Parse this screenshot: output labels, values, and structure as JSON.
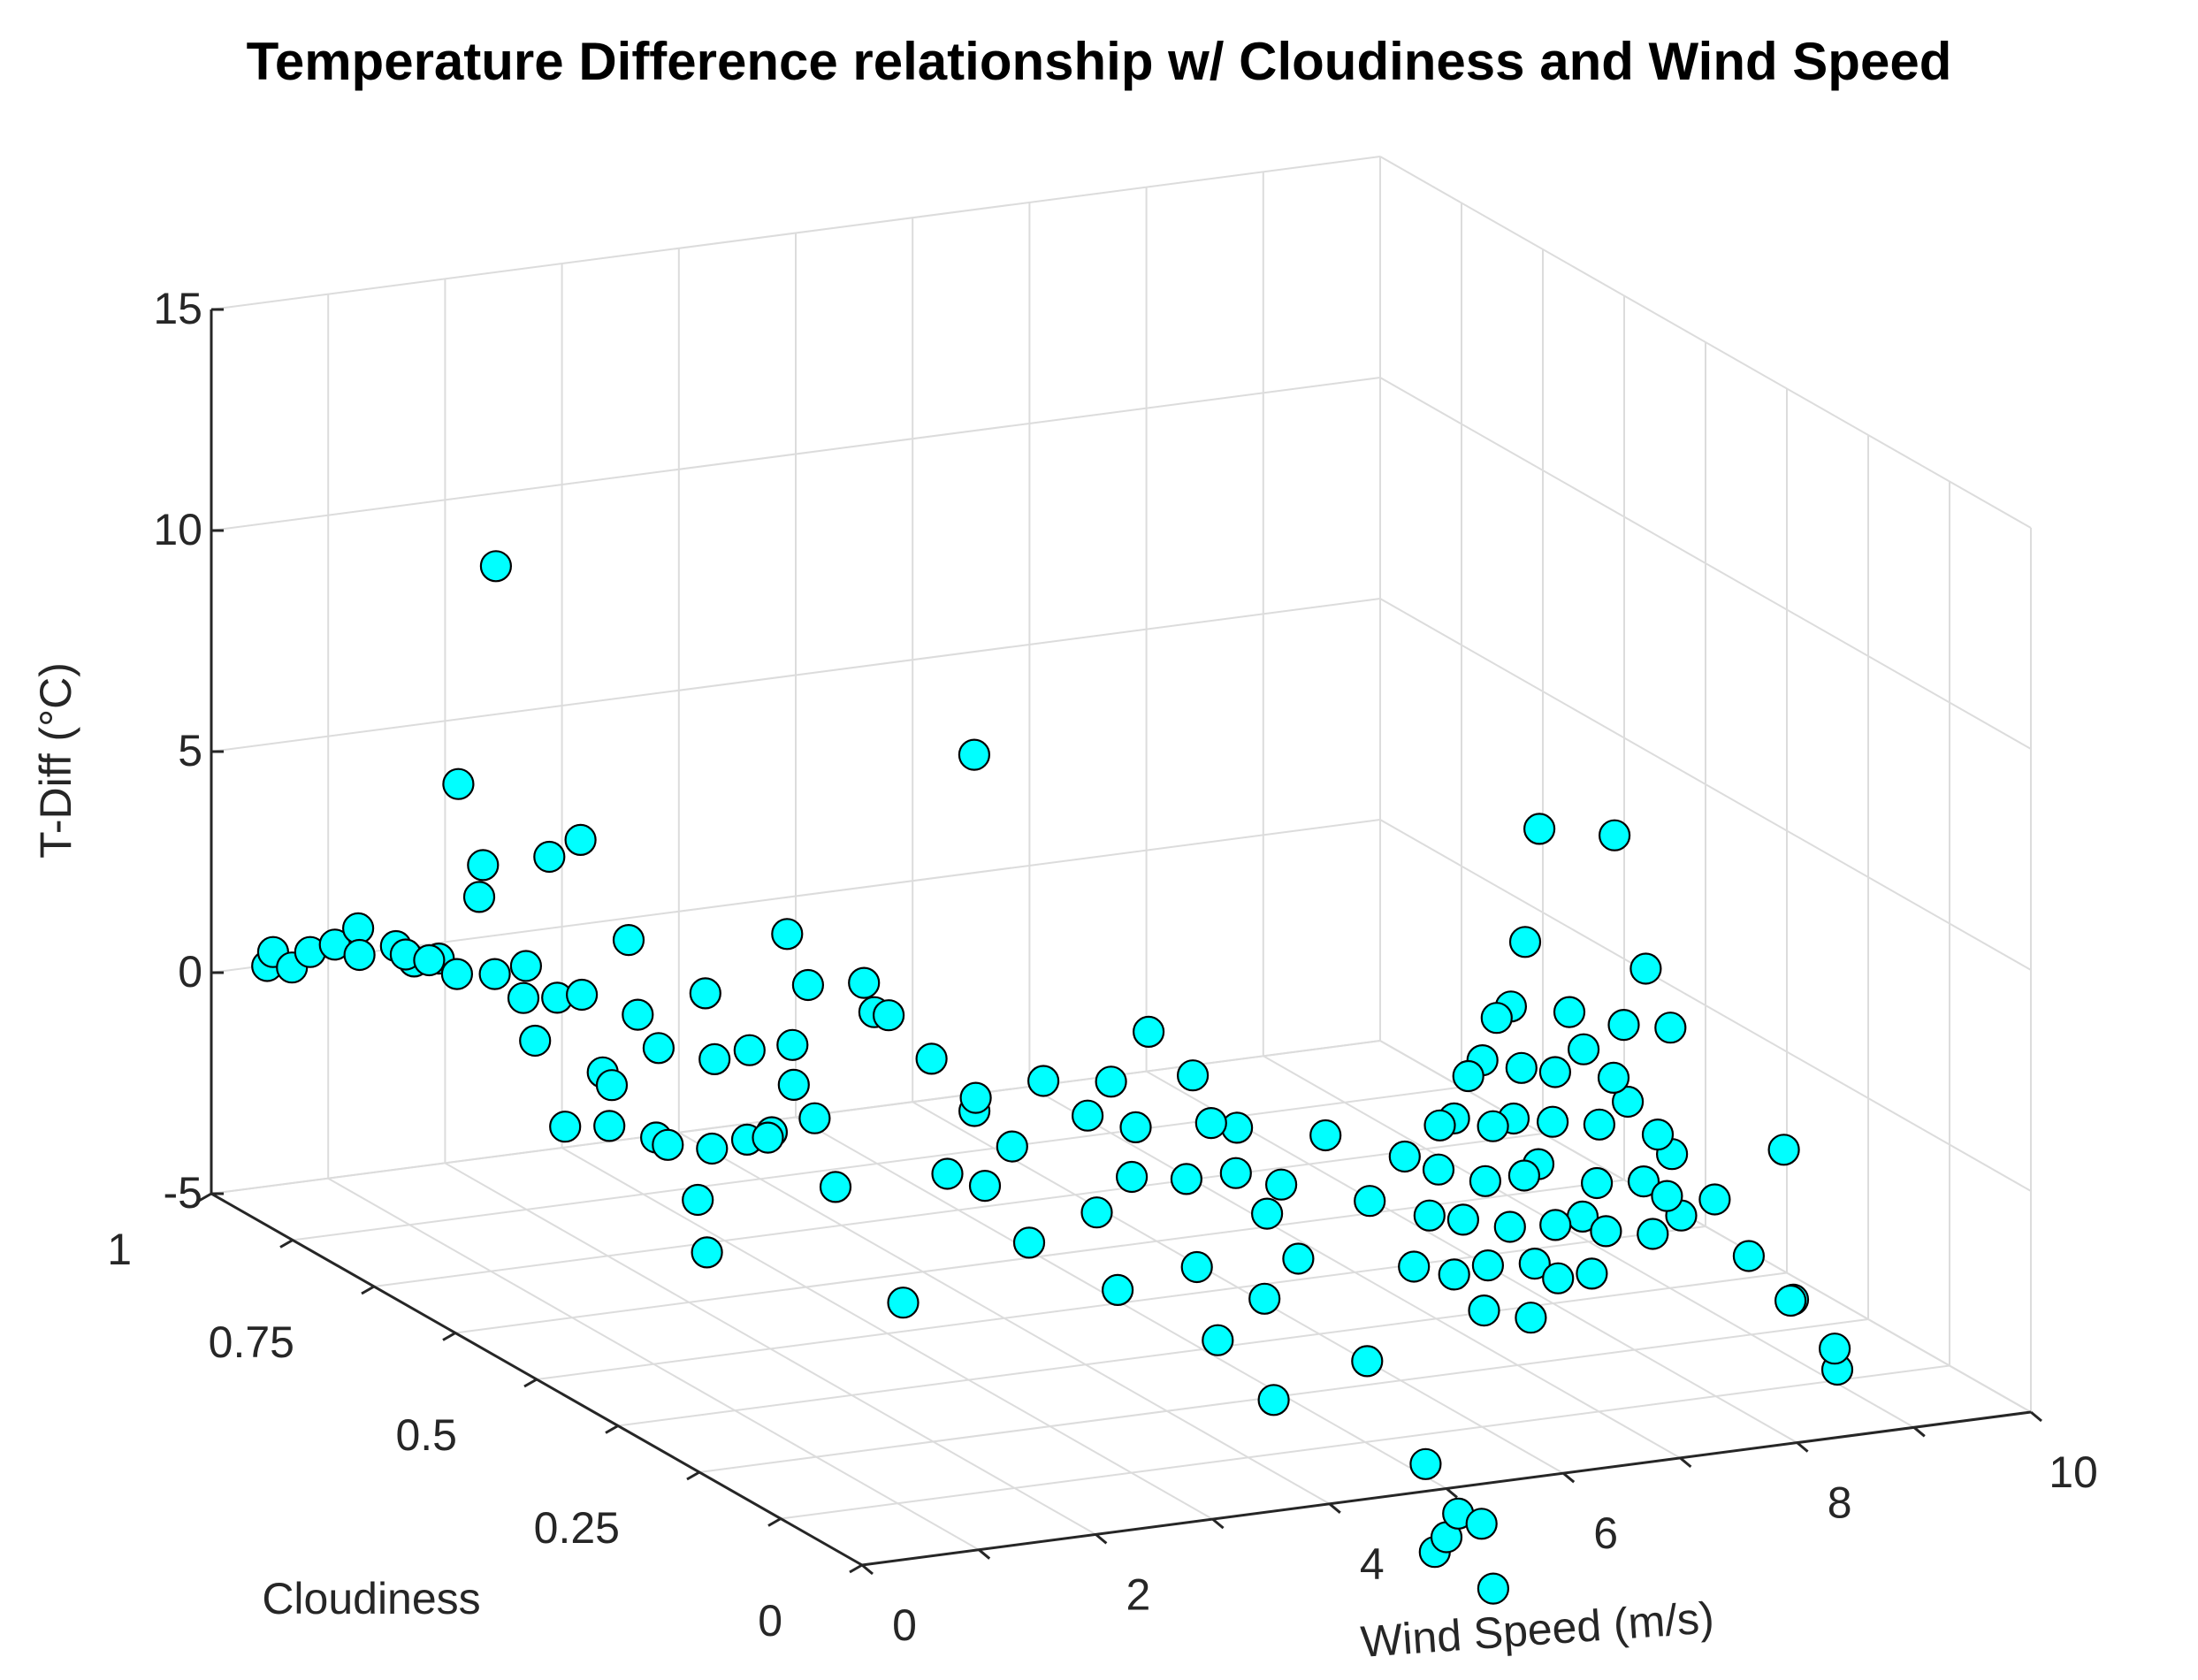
{
  "chart_data": {
    "type": "scatter",
    "title": "Temperature Difference relationship w/ Cloudiness and Wind Speed",
    "xlabel": "Wind Speed (m/s)",
    "ylabel": "Cloudiness",
    "zlabel": "T-Diff (°C)",
    "xlim": [
      0,
      10
    ],
    "ylim": [
      0,
      1
    ],
    "zlim": [
      -5,
      15
    ],
    "x_ticks": [
      "0",
      "2",
      "4",
      "6",
      "8",
      "10"
    ],
    "y_ticks": [
      "0",
      "0.25",
      "0.5",
      "0.75",
      "1"
    ],
    "z_ticks": [
      "-5",
      "0",
      "5",
      "10",
      "15"
    ],
    "grid": true,
    "view": "3d",
    "marker_color": "#00FFFF",
    "marker_edge_color": "#000000",
    "points": [
      [
        0.2,
        0.95,
        0.5
      ],
      [
        0.25,
        0.95,
        0.8
      ],
      [
        0.3,
        0.93,
        0.6
      ],
      [
        0.4,
        0.92,
        1.0
      ],
      [
        0.5,
        0.9,
        1.3
      ],
      [
        0.6,
        0.88,
        1.2
      ],
      [
        0.7,
        0.9,
        1.6
      ],
      [
        0.8,
        0.86,
        1.5
      ],
      [
        0.9,
        0.85,
        1.2
      ],
      [
        1.0,
        0.83,
        1.4
      ],
      [
        0.55,
        0.8,
        1.9
      ],
      [
        0.75,
        0.8,
        1.7
      ],
      [
        1.1,
        0.82,
        1.1
      ],
      [
        0.9,
        0.75,
        3.5
      ],
      [
        1.0,
        0.7,
        1.6
      ],
      [
        1.2,
        0.78,
        1.4
      ],
      [
        1.3,
        0.75,
        1.8
      ],
      [
        1.1,
        0.7,
        0.6
      ],
      [
        1.4,
        0.72,
        1.3
      ],
      [
        1.5,
        0.7,
        1.5
      ],
      [
        1.4,
        0.65,
        0.2
      ],
      [
        1.6,
        0.6,
        1.1
      ],
      [
        1.7,
        0.65,
        1.4
      ],
      [
        1.2,
        0.6,
        0.4
      ],
      [
        1.8,
        0.55,
        1.2
      ],
      [
        1.0,
        0.8,
        5.6
      ],
      [
        1.1,
        0.78,
        3.9
      ],
      [
        1.5,
        0.75,
        4.2
      ],
      [
        1.6,
        0.72,
        4.8
      ],
      [
        1.9,
        0.7,
        2.6
      ],
      [
        2.0,
        0.6,
        2.2
      ],
      [
        2.1,
        0.55,
        1.3
      ],
      [
        2.2,
        0.5,
        0.9
      ],
      [
        1.9,
        0.48,
        0.1
      ],
      [
        2.3,
        0.52,
        1.6
      ],
      [
        0.8,
        0.6,
        -0.4
      ],
      [
        0.9,
        0.55,
        0.0
      ],
      [
        1.3,
        0.55,
        -0.4
      ],
      [
        1.5,
        0.5,
        -0.3
      ],
      [
        1.7,
        0.45,
        0.3
      ],
      [
        0.9,
        0.4,
        -1.6
      ],
      [
        1.1,
        0.45,
        -0.9
      ],
      [
        1.4,
        0.55,
        -0.6
      ],
      [
        1.8,
        0.5,
        -0.2
      ],
      [
        2.1,
        0.45,
        0.6
      ],
      [
        2.0,
        0.4,
        -0.5
      ],
      [
        2.3,
        0.35,
        -2.8
      ],
      [
        2.4,
        0.3,
        0.5
      ],
      [
        1.6,
        0.85,
        9.9
      ],
      [
        2.6,
        0.55,
        2.6
      ],
      [
        2.7,
        0.6,
        3.3
      ],
      [
        2.8,
        0.5,
        3.0
      ],
      [
        2.9,
        0.48,
        2.4
      ],
      [
        3.0,
        0.52,
        2.1
      ],
      [
        3.1,
        0.45,
        1.6
      ],
      [
        3.2,
        0.4,
        1.1
      ],
      [
        3.3,
        0.42,
        0.6
      ],
      [
        3.0,
        0.35,
        -0.4
      ],
      [
        3.1,
        0.3,
        -1.3
      ],
      [
        3.4,
        0.38,
        0.1
      ],
      [
        3.5,
        0.35,
        1.8
      ],
      [
        3.6,
        0.3,
        1.4
      ],
      [
        3.7,
        0.25,
        0.4
      ],
      [
        3.4,
        0.25,
        -0.3
      ],
      [
        3.3,
        0.2,
        -1.6
      ],
      [
        3.8,
        0.3,
        2.1
      ],
      [
        3.9,
        0.28,
        1.2
      ],
      [
        4.0,
        0.22,
        0.5
      ],
      [
        3.7,
        0.15,
        -0.8
      ],
      [
        3.6,
        0.1,
        -2.0
      ],
      [
        4.1,
        0.2,
        1.9
      ],
      [
        4.2,
        0.18,
        0.9
      ],
      [
        4.3,
        0.15,
        0.2
      ],
      [
        4.0,
        0.1,
        -1.2
      ],
      [
        3.8,
        0.05,
        -3.0
      ],
      [
        4.4,
        0.35,
        2.6
      ],
      [
        4.5,
        0.3,
        2.0
      ],
      [
        4.6,
        0.25,
        1.2
      ],
      [
        4.7,
        0.2,
        0.3
      ],
      [
        4.4,
        0.12,
        -0.6
      ],
      [
        4.3,
        0.6,
        6.8
      ],
      [
        4.8,
        0.15,
        1.8
      ],
      [
        4.9,
        0.1,
        0.7
      ],
      [
        5.0,
        0.05,
        -0.4
      ],
      [
        4.6,
        0.05,
        -2.4
      ],
      [
        5.1,
        0.05,
        -4.9
      ],
      [
        5.1,
        0.0,
        -5.6
      ],
      [
        5.3,
        0.0,
        -5.9
      ],
      [
        4.9,
        0.0,
        -6.4
      ],
      [
        5.0,
        0.0,
        -6.1
      ],
      [
        5.4,
        0.0,
        -7.4
      ],
      [
        5.2,
        0.1,
        1.6
      ],
      [
        5.3,
        0.08,
        0.4
      ],
      [
        5.4,
        0.06,
        -0.8
      ],
      [
        5.5,
        0.1,
        2.2
      ],
      [
        5.6,
        0.12,
        1.0
      ],
      [
        5.7,
        0.1,
        0.0
      ],
      [
        5.8,
        0.08,
        -0.9
      ],
      [
        5.6,
        0.05,
        -1.6
      ],
      [
        5.9,
        0.15,
        1.8
      ],
      [
        6.0,
        0.12,
        0.6
      ],
      [
        6.1,
        0.1,
        -0.3
      ],
      [
        6.2,
        0.08,
        -1.0
      ],
      [
        6.0,
        0.05,
        -1.9
      ],
      [
        6.3,
        0.2,
        2.2
      ],
      [
        6.4,
        0.18,
        1.2
      ],
      [
        6.5,
        0.15,
        0.3
      ],
      [
        6.6,
        0.12,
        -0.6
      ],
      [
        6.4,
        0.08,
        -1.4
      ],
      [
        6.7,
        0.25,
        2.0
      ],
      [
        6.8,
        0.22,
        0.9
      ],
      [
        6.9,
        0.2,
        0.0
      ],
      [
        7.0,
        0.15,
        -0.8
      ],
      [
        6.8,
        0.1,
        -1.6
      ],
      [
        7.1,
        0.3,
        2.4
      ],
      [
        7.2,
        0.28,
        1.4
      ],
      [
        7.3,
        0.25,
        0.4
      ],
      [
        7.4,
        0.2,
        -0.6
      ],
      [
        7.2,
        0.15,
        -1.2
      ],
      [
        7.5,
        0.35,
        2.1
      ],
      [
        7.6,
        0.3,
        1.0
      ],
      [
        7.7,
        0.25,
        0.2
      ],
      [
        7.8,
        0.2,
        -0.7
      ],
      [
        7.6,
        0.15,
        -1.4
      ],
      [
        7.9,
        0.4,
        3.0
      ],
      [
        8.0,
        0.35,
        1.8
      ],
      [
        8.1,
        0.3,
        0.7
      ],
      [
        8.2,
        0.25,
        -0.2
      ],
      [
        8.0,
        0.2,
        -1.1
      ],
      [
        8.3,
        0.45,
        5.0
      ],
      [
        8.4,
        0.4,
        0.4
      ],
      [
        8.5,
        0.35,
        -0.4
      ],
      [
        8.6,
        0.3,
        -1.2
      ],
      [
        8.4,
        0.25,
        -2.1
      ],
      [
        8.7,
        0.2,
        -2.7
      ],
      [
        8.8,
        0.15,
        -3.3
      ],
      [
        8.9,
        0.1,
        -4.5
      ],
      [
        8.6,
        0.05,
        -3.5
      ],
      [
        8.5,
        0.1,
        -2.8
      ],
      [
        9.0,
        0.2,
        -0.4
      ],
      [
        9.3,
        0.5,
        -0.2
      ],
      [
        9.5,
        0.55,
        3.6
      ],
      [
        9.6,
        0.52,
        0.8
      ],
      [
        9.7,
        0.5,
        -0.4
      ],
      [
        9.8,
        0.45,
        -3.9
      ]
    ]
  }
}
